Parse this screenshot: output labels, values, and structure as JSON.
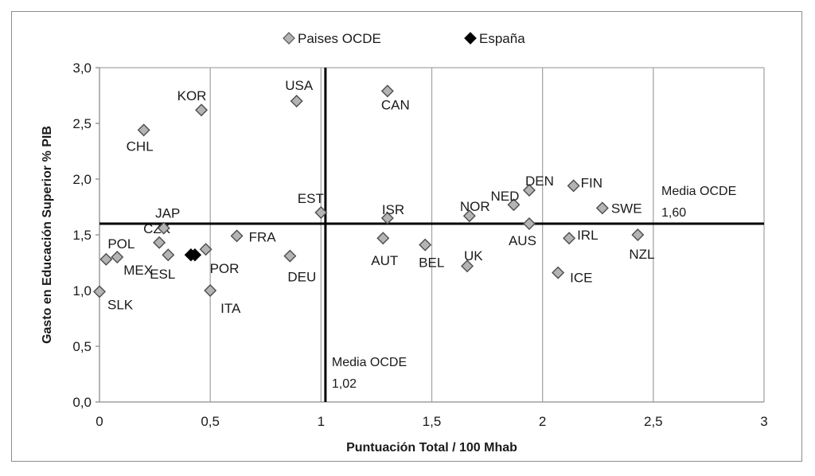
{
  "chart_data": {
    "type": "scatter",
    "xlabel": "Puntuación Total / 100 Mhab",
    "ylabel": "Gasto en Educación Superior % PIB",
    "xlim": [
      0,
      3
    ],
    "ylim": [
      0,
      3
    ],
    "x_ticks": [
      "0",
      "0,5",
      "1",
      "1,5",
      "2",
      "2,5",
      "3"
    ],
    "y_ticks": [
      "0,0",
      "0,5",
      "1,0",
      "1,5",
      "2,0",
      "2,5",
      "3,0"
    ],
    "grid": "vertical",
    "legend_position": "top",
    "series": [
      {
        "name": "Paises OCDE",
        "color": "#b4b4b4",
        "marker": "diamond",
        "points": [
          {
            "label": "SLK",
            "x": 0.0,
            "y": 0.99
          },
          {
            "label": "POL",
            "x": 0.03,
            "y": 1.28
          },
          {
            "label": "MEX",
            "x": 0.08,
            "y": 1.3
          },
          {
            "label": "CHL",
            "x": 0.2,
            "y": 2.44
          },
          {
            "label": "CZK",
            "x": 0.27,
            "y": 1.43
          },
          {
            "label": "JAP",
            "x": 0.29,
            "y": 1.56
          },
          {
            "label": "ESL",
            "x": 0.31,
            "y": 1.32
          },
          {
            "label": "KOR",
            "x": 0.46,
            "y": 2.62
          },
          {
            "label": "POR",
            "x": 0.48,
            "y": 1.37
          },
          {
            "label": "ITA",
            "x": 0.5,
            "y": 1.0
          },
          {
            "label": "FRA",
            "x": 0.62,
            "y": 1.49
          },
          {
            "label": "DEU",
            "x": 0.86,
            "y": 1.31
          },
          {
            "label": "USA",
            "x": 0.89,
            "y": 2.7
          },
          {
            "label": "EST",
            "x": 1.0,
            "y": 1.7
          },
          {
            "label": "AUT",
            "x": 1.28,
            "y": 1.47
          },
          {
            "label": "ISR",
            "x": 1.3,
            "y": 1.65
          },
          {
            "label": "CAN",
            "x": 1.3,
            "y": 2.79
          },
          {
            "label": "BEL",
            "x": 1.47,
            "y": 1.41
          },
          {
            "label": "UK",
            "x": 1.66,
            "y": 1.22
          },
          {
            "label": "NOR",
            "x": 1.67,
            "y": 1.67
          },
          {
            "label": "NED",
            "x": 1.87,
            "y": 1.77
          },
          {
            "label": "DEN",
            "x": 1.94,
            "y": 1.9
          },
          {
            "label": "AUS",
            "x": 1.94,
            "y": 1.6
          },
          {
            "label": "ICE",
            "x": 2.07,
            "y": 1.16
          },
          {
            "label": "IRL",
            "x": 2.12,
            "y": 1.47
          },
          {
            "label": "FIN",
            "x": 2.14,
            "y": 1.94
          },
          {
            "label": "SWE",
            "x": 2.27,
            "y": 1.74
          },
          {
            "label": "NZL",
            "x": 2.43,
            "y": 1.5
          }
        ]
      },
      {
        "name": "España",
        "color": "#000000",
        "marker": "diamond",
        "points": [
          {
            "label": "",
            "x": 0.42,
            "y": 1.32
          }
        ]
      }
    ],
    "reference_lines": [
      {
        "orientation": "vertical",
        "value": 1.02,
        "label": "Media OCDE",
        "value_label": "1,02"
      },
      {
        "orientation": "horizontal",
        "value": 1.6,
        "label": "Media OCDE",
        "value_label": "1,60"
      }
    ]
  }
}
